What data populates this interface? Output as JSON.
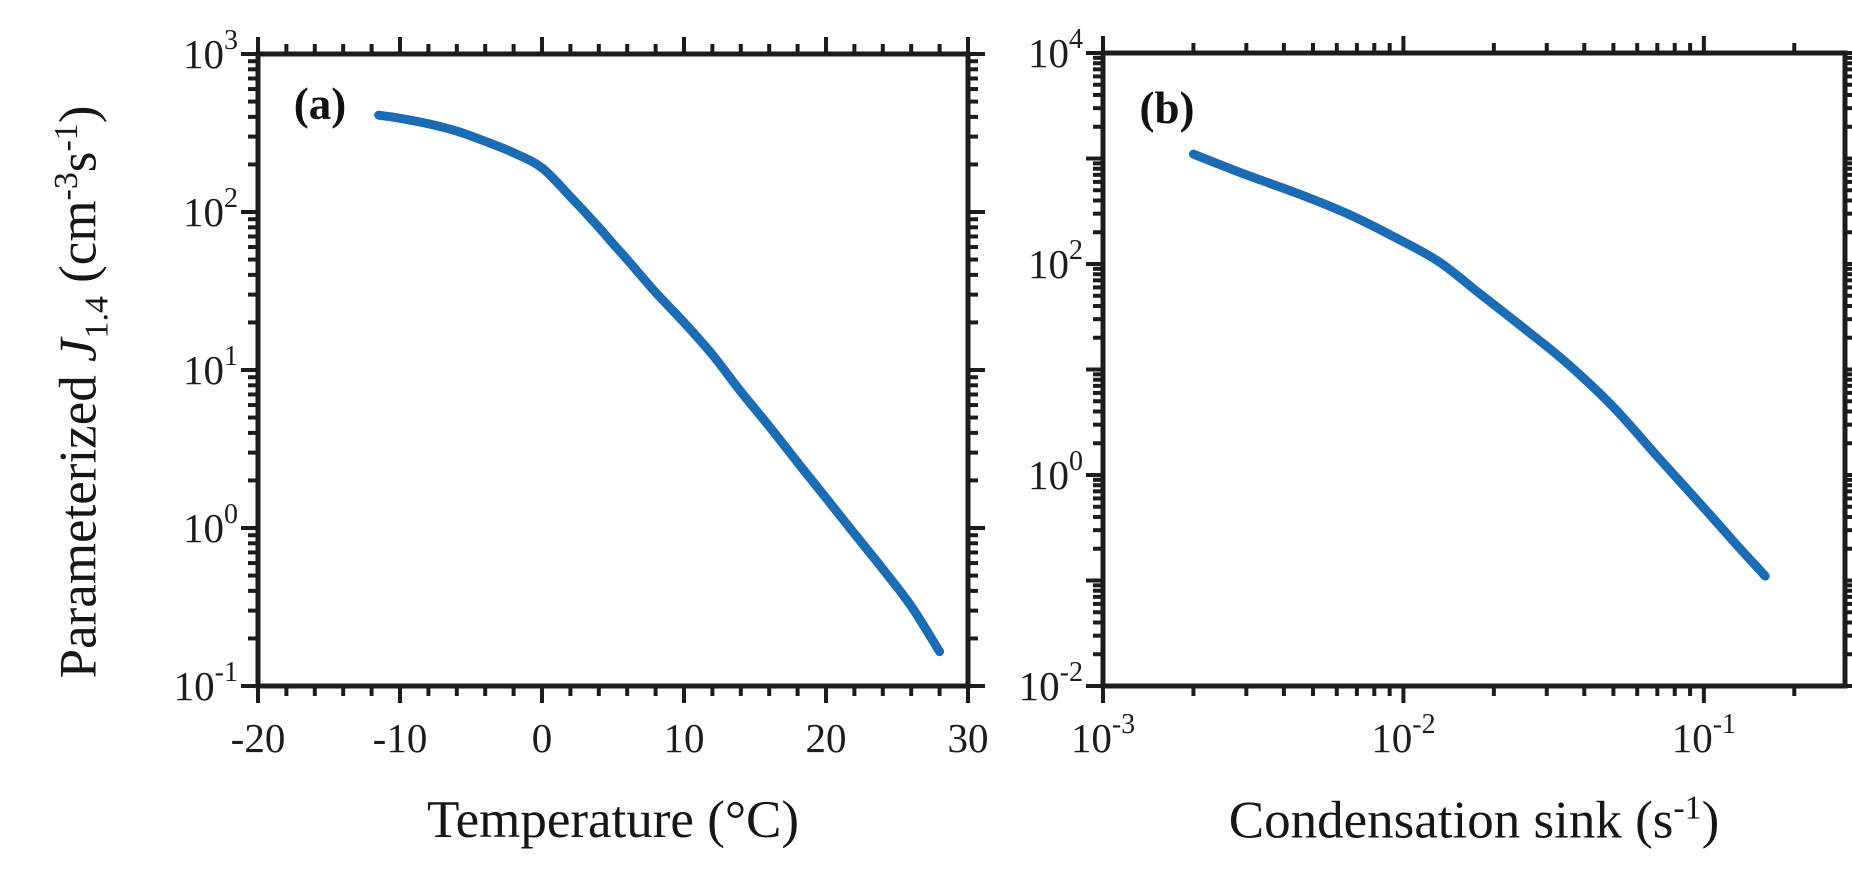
{
  "figure": {
    "background": "#ffffff",
    "curve_color": "#1a6cb5",
    "axis_color": "#1c1c1c",
    "text_color": "#161616",
    "ylabel": {
      "full": "Parameterized J1.4 (cm^-3 s^-1)",
      "parts": [
        {
          "t": "Parameterized "
        },
        {
          "t": "J",
          "style": "italic"
        },
        {
          "t": "1.4",
          "style": "sub"
        },
        {
          "t": " (cm",
          "style": ""
        },
        {
          "t": "-3",
          "style": "sup"
        },
        {
          "t": "s",
          "style": ""
        },
        {
          "t": "-1",
          "style": "sup"
        },
        {
          "t": ")",
          "style": ""
        }
      ]
    }
  },
  "chart_data": [
    {
      "type": "line",
      "panel_label": "(a)",
      "xlabel": "Temperature (°C)",
      "ylabel": "Parameterized J1.4 (cm^-3 s^-1)",
      "x_axis": {
        "type": "linear",
        "min": -20,
        "max": 30,
        "major_ticks": [
          -20,
          -10,
          0,
          10,
          20,
          30
        ],
        "tick_labels": [
          "-20",
          "-10",
          "0",
          "10",
          "20",
          "30"
        ],
        "minor_step": 2
      },
      "y_axis": {
        "type": "log",
        "min_exp": -1,
        "max_exp": 3,
        "labeled_exps": [
          3,
          2,
          1,
          0,
          -1
        ],
        "tick_labels": [
          "10^3",
          "10^2",
          "10^1",
          "10^0",
          "10^-1"
        ]
      },
      "grid": false,
      "legend": false,
      "series": [
        {
          "name": "parameterized-J1.4-vs-temperature",
          "points": [
            [
              -11.5,
              410
            ],
            [
              -10,
              392
            ],
            [
              -8,
              362
            ],
            [
              -6,
              325
            ],
            [
              -4,
              280
            ],
            [
              -2,
              237
            ],
            [
              0,
              190
            ],
            [
              2,
              125
            ],
            [
              4,
              80
            ],
            [
              5,
              63
            ],
            [
              6,
              50
            ],
            [
              8,
              31
            ],
            [
              10,
              20
            ],
            [
              12,
              12.5
            ],
            [
              14,
              7.3
            ],
            [
              16,
              4.4
            ],
            [
              18,
              2.6
            ],
            [
              20,
              1.55
            ],
            [
              22,
              0.92
            ],
            [
              24,
              0.55
            ],
            [
              26,
              0.32
            ],
            [
              28,
              0.165
            ]
          ]
        }
      ]
    },
    {
      "type": "line",
      "panel_label": "(b)",
      "xlabel": "Condensation sink (s^-1)",
      "xlabel_parts": [
        {
          "t": "Condensation sink (s",
          "style": ""
        },
        {
          "t": "-1",
          "style": "sup"
        },
        {
          "t": ")",
          "style": ""
        }
      ],
      "ylabel": "Parameterized J1.4 (cm^-3 s^-1)",
      "x_axis": {
        "type": "log",
        "min_exp": -3,
        "max_value": 0.295,
        "labeled_exps": [
          -3,
          -2,
          -1
        ],
        "tick_labels": [
          "10^-3",
          "10^-2",
          "10^-1"
        ]
      },
      "y_axis": {
        "type": "log",
        "min_exp": -2,
        "max_exp": 4,
        "labeled_exps": [
          4,
          2,
          0,
          -2
        ],
        "tick_labels": [
          "10^4",
          "10^2",
          "10^0",
          "10^-2"
        ]
      },
      "grid": false,
      "legend": false,
      "series": [
        {
          "name": "parameterized-J1.4-vs-condensation-sink",
          "points": [
            [
              0.002,
              1100
            ],
            [
              0.003,
              700
            ],
            [
              0.0045,
              460
            ],
            [
              0.0065,
              300
            ],
            [
              0.009,
              190
            ],
            [
              0.013,
              107
            ],
            [
              0.018,
              52
            ],
            [
              0.025,
              25
            ],
            [
              0.035,
              11.5
            ],
            [
              0.05,
              4.4
            ],
            [
              0.07,
              1.5
            ],
            [
              0.09,
              0.68
            ],
            [
              0.11,
              0.36
            ],
            [
              0.13,
              0.21
            ],
            [
              0.15,
              0.135
            ],
            [
              0.16,
              0.11
            ]
          ]
        }
      ]
    }
  ]
}
